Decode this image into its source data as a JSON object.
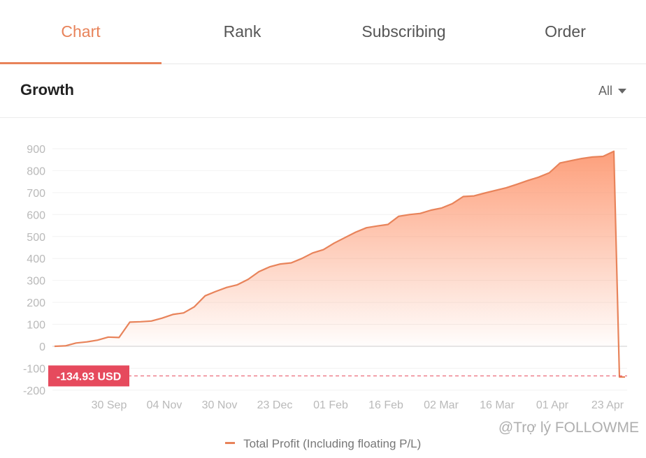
{
  "tabs": [
    {
      "label": "Chart",
      "active": true
    },
    {
      "label": "Rank",
      "active": false
    },
    {
      "label": "Subscribing",
      "active": false
    },
    {
      "label": "Order",
      "active": false
    }
  ],
  "section": {
    "title": "Growth",
    "filter_label": "All",
    "filter_icon": "caret-down-icon"
  },
  "watermark": "@Trợ lý FOLLOWME",
  "colors": {
    "accent": "#e8835a",
    "line": "#e8835a",
    "badge": "#e64a5d",
    "fill_top": "#fd9a74",
    "zero_line": "#cccccc"
  },
  "chart_data": {
    "type": "area",
    "yticks": [
      900,
      800,
      700,
      600,
      500,
      400,
      300,
      200,
      100,
      0,
      -100,
      -200
    ],
    "ylim": [
      -200,
      900
    ],
    "xticks": [
      "30 Sep",
      "04 Nov",
      "30 Nov",
      "23 Dec",
      "01 Feb",
      "16 Feb",
      "02 Mar",
      "16 Mar",
      "01 Apr",
      "23 Apr"
    ],
    "series": [
      {
        "name": "Total Profit (Including floating P/L)",
        "points": [
          [
            "start",
            0
          ],
          [
            "",
            2
          ],
          [
            "",
            15
          ],
          [
            "",
            20
          ],
          [
            "",
            28
          ],
          [
            "",
            42
          ],
          [
            "",
            40
          ],
          [
            "",
            110
          ],
          [
            "30 Sep",
            112
          ],
          [
            "",
            115
          ],
          [
            "",
            128
          ],
          [
            "",
            145
          ],
          [
            "",
            152
          ],
          [
            "",
            180
          ],
          [
            "",
            230
          ],
          [
            "04 Nov",
            250
          ],
          [
            "",
            268
          ],
          [
            "",
            280
          ],
          [
            "",
            305
          ],
          [
            "30 Nov",
            340
          ],
          [
            "",
            362
          ],
          [
            "",
            375
          ],
          [
            "",
            380
          ],
          [
            "",
            400
          ],
          [
            "23 Dec",
            425
          ],
          [
            "",
            440
          ],
          [
            "",
            470
          ],
          [
            "",
            495
          ],
          [
            "",
            520
          ],
          [
            "01 Feb",
            540
          ],
          [
            "",
            548
          ],
          [
            "",
            555
          ],
          [
            "",
            592
          ],
          [
            "16 Feb",
            600
          ],
          [
            "",
            605
          ],
          [
            "",
            620
          ],
          [
            "",
            630
          ],
          [
            "",
            650
          ],
          [
            "",
            682
          ],
          [
            "02 Mar",
            685
          ],
          [
            "",
            698
          ],
          [
            "",
            710
          ],
          [
            "16 Mar",
            722
          ],
          [
            "",
            738
          ],
          [
            "",
            755
          ],
          [
            "",
            770
          ],
          [
            "01 Apr",
            790
          ],
          [
            "",
            835
          ],
          [
            "",
            845
          ],
          [
            "",
            855
          ],
          [
            "23 Apr",
            862
          ],
          [
            "",
            865
          ],
          [
            "",
            888
          ],
          [
            "",
            -140
          ],
          [
            "end",
            -140
          ]
        ]
      }
    ],
    "current_value": -134.93,
    "current_label": "-134.93 USD",
    "legend_position": "bottom",
    "grid": true
  }
}
